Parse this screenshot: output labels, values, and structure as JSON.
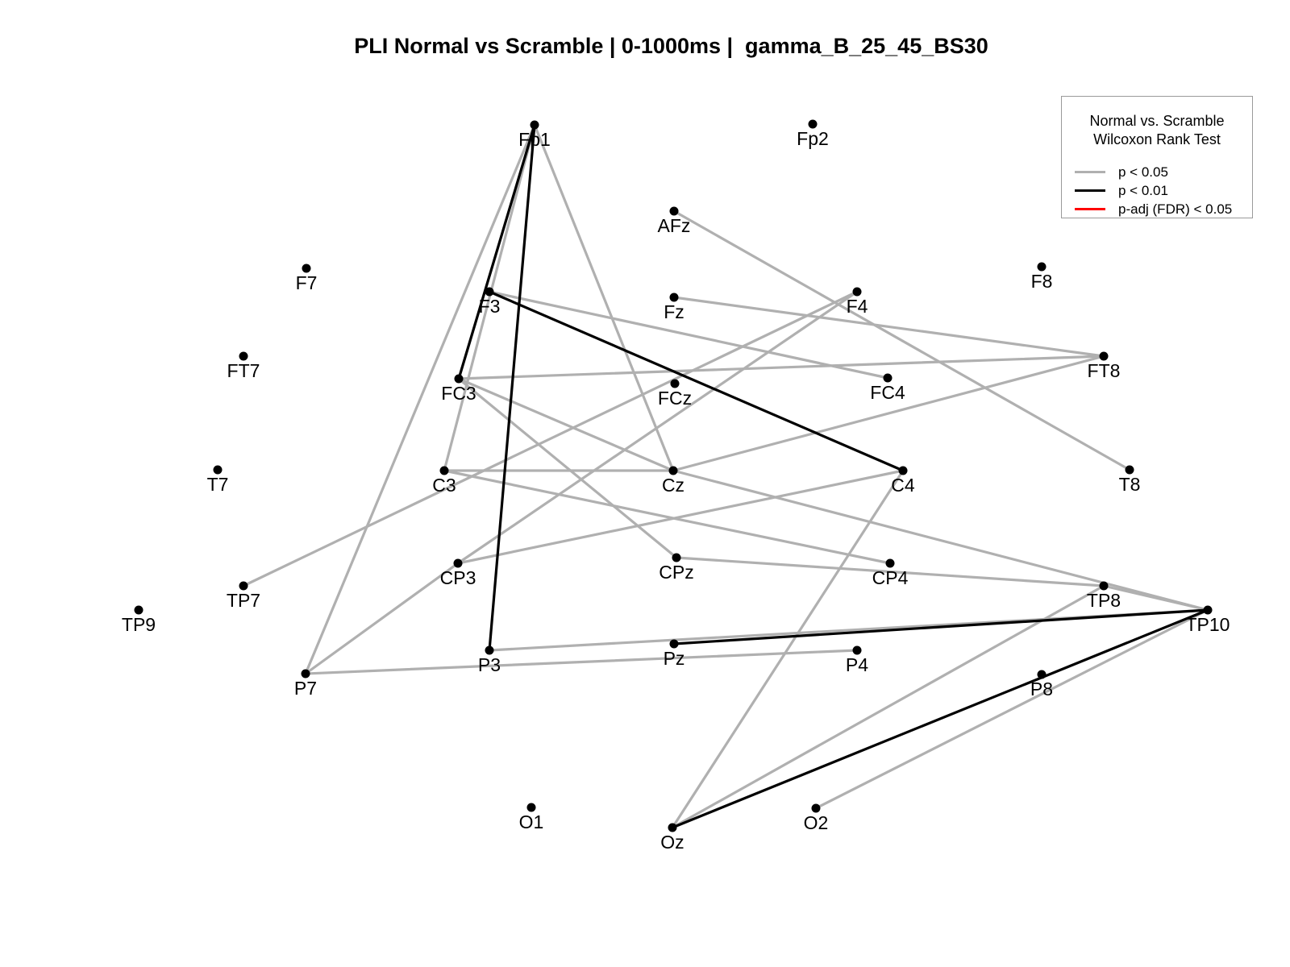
{
  "title": "PLI Normal vs Scramble | 0-1000ms |  gamma_B_25_45_BS30",
  "legend": {
    "title_line1": "Normal vs. Scramble",
    "title_line2": "Wilcoxon Rank Test",
    "entries": [
      {
        "label": "p < 0.05",
        "color": "#b0b0b0"
      },
      {
        "label": "p < 0.01",
        "color": "#000000"
      },
      {
        "label": "p-adj (FDR) < 0.05",
        "color": "#ff0000"
      }
    ]
  },
  "edge_colors": {
    "p05": "#b0b0b0",
    "p01": "#000000"
  },
  "nodes": [
    "Fp1",
    "Fp2",
    "AFz",
    "F7",
    "F3",
    "Fz",
    "F4",
    "F8",
    "FT7",
    "FC3",
    "FCz",
    "FC4",
    "FT8",
    "T7",
    "C3",
    "Cz",
    "C4",
    "T8",
    "TP7",
    "CP3",
    "CPz",
    "CP4",
    "TP8",
    "TP9",
    "TP10",
    "P7",
    "P3",
    "Pz",
    "P4",
    "P8",
    "O1",
    "Oz",
    "O2"
  ],
  "edges": [
    {
      "from": "Fp1",
      "to": "FC3",
      "level": "p05"
    },
    {
      "from": "Fp1",
      "to": "C3",
      "level": "p05"
    },
    {
      "from": "Fp1",
      "to": "Cz",
      "level": "p05"
    },
    {
      "from": "Fp1",
      "to": "P7",
      "level": "p05"
    },
    {
      "from": "AFz",
      "to": "T8",
      "level": "p05"
    },
    {
      "from": "F3",
      "to": "FC4",
      "level": "p05"
    },
    {
      "from": "Fz",
      "to": "FT8",
      "level": "p05"
    },
    {
      "from": "FC3",
      "to": "FT8",
      "level": "p05"
    },
    {
      "from": "FC3",
      "to": "Cz",
      "level": "p05"
    },
    {
      "from": "FC3",
      "to": "CPz",
      "level": "p05"
    },
    {
      "from": "F4",
      "to": "TP7",
      "level": "p05"
    },
    {
      "from": "F4",
      "to": "CP3",
      "level": "p05"
    },
    {
      "from": "C3",
      "to": "Cz",
      "level": "p05"
    },
    {
      "from": "C3",
      "to": "CP4",
      "level": "p05"
    },
    {
      "from": "Cz",
      "to": "FT8",
      "level": "p05"
    },
    {
      "from": "Cz",
      "to": "TP10",
      "level": "p05"
    },
    {
      "from": "C4",
      "to": "CP3",
      "level": "p05"
    },
    {
      "from": "C4",
      "to": "Oz",
      "level": "p05"
    },
    {
      "from": "CPz",
      "to": "TP8",
      "level": "p05"
    },
    {
      "from": "CP3",
      "to": "P7",
      "level": "p05"
    },
    {
      "from": "P7",
      "to": "P4",
      "level": "p05"
    },
    {
      "from": "P3",
      "to": "TP10",
      "level": "p05"
    },
    {
      "from": "TP8",
      "to": "Oz",
      "level": "p05"
    },
    {
      "from": "TP8",
      "to": "TP10",
      "level": "p05"
    },
    {
      "from": "TP10",
      "to": "O2",
      "level": "p05"
    },
    {
      "from": "Fp1",
      "to": "FC3",
      "level": "p01"
    },
    {
      "from": "Fp1",
      "to": "P3",
      "level": "p01"
    },
    {
      "from": "F3",
      "to": "C4",
      "level": "p01"
    },
    {
      "from": "Pz",
      "to": "TP10",
      "level": "p01"
    },
    {
      "from": "Oz",
      "to": "TP10",
      "level": "p01"
    }
  ]
}
